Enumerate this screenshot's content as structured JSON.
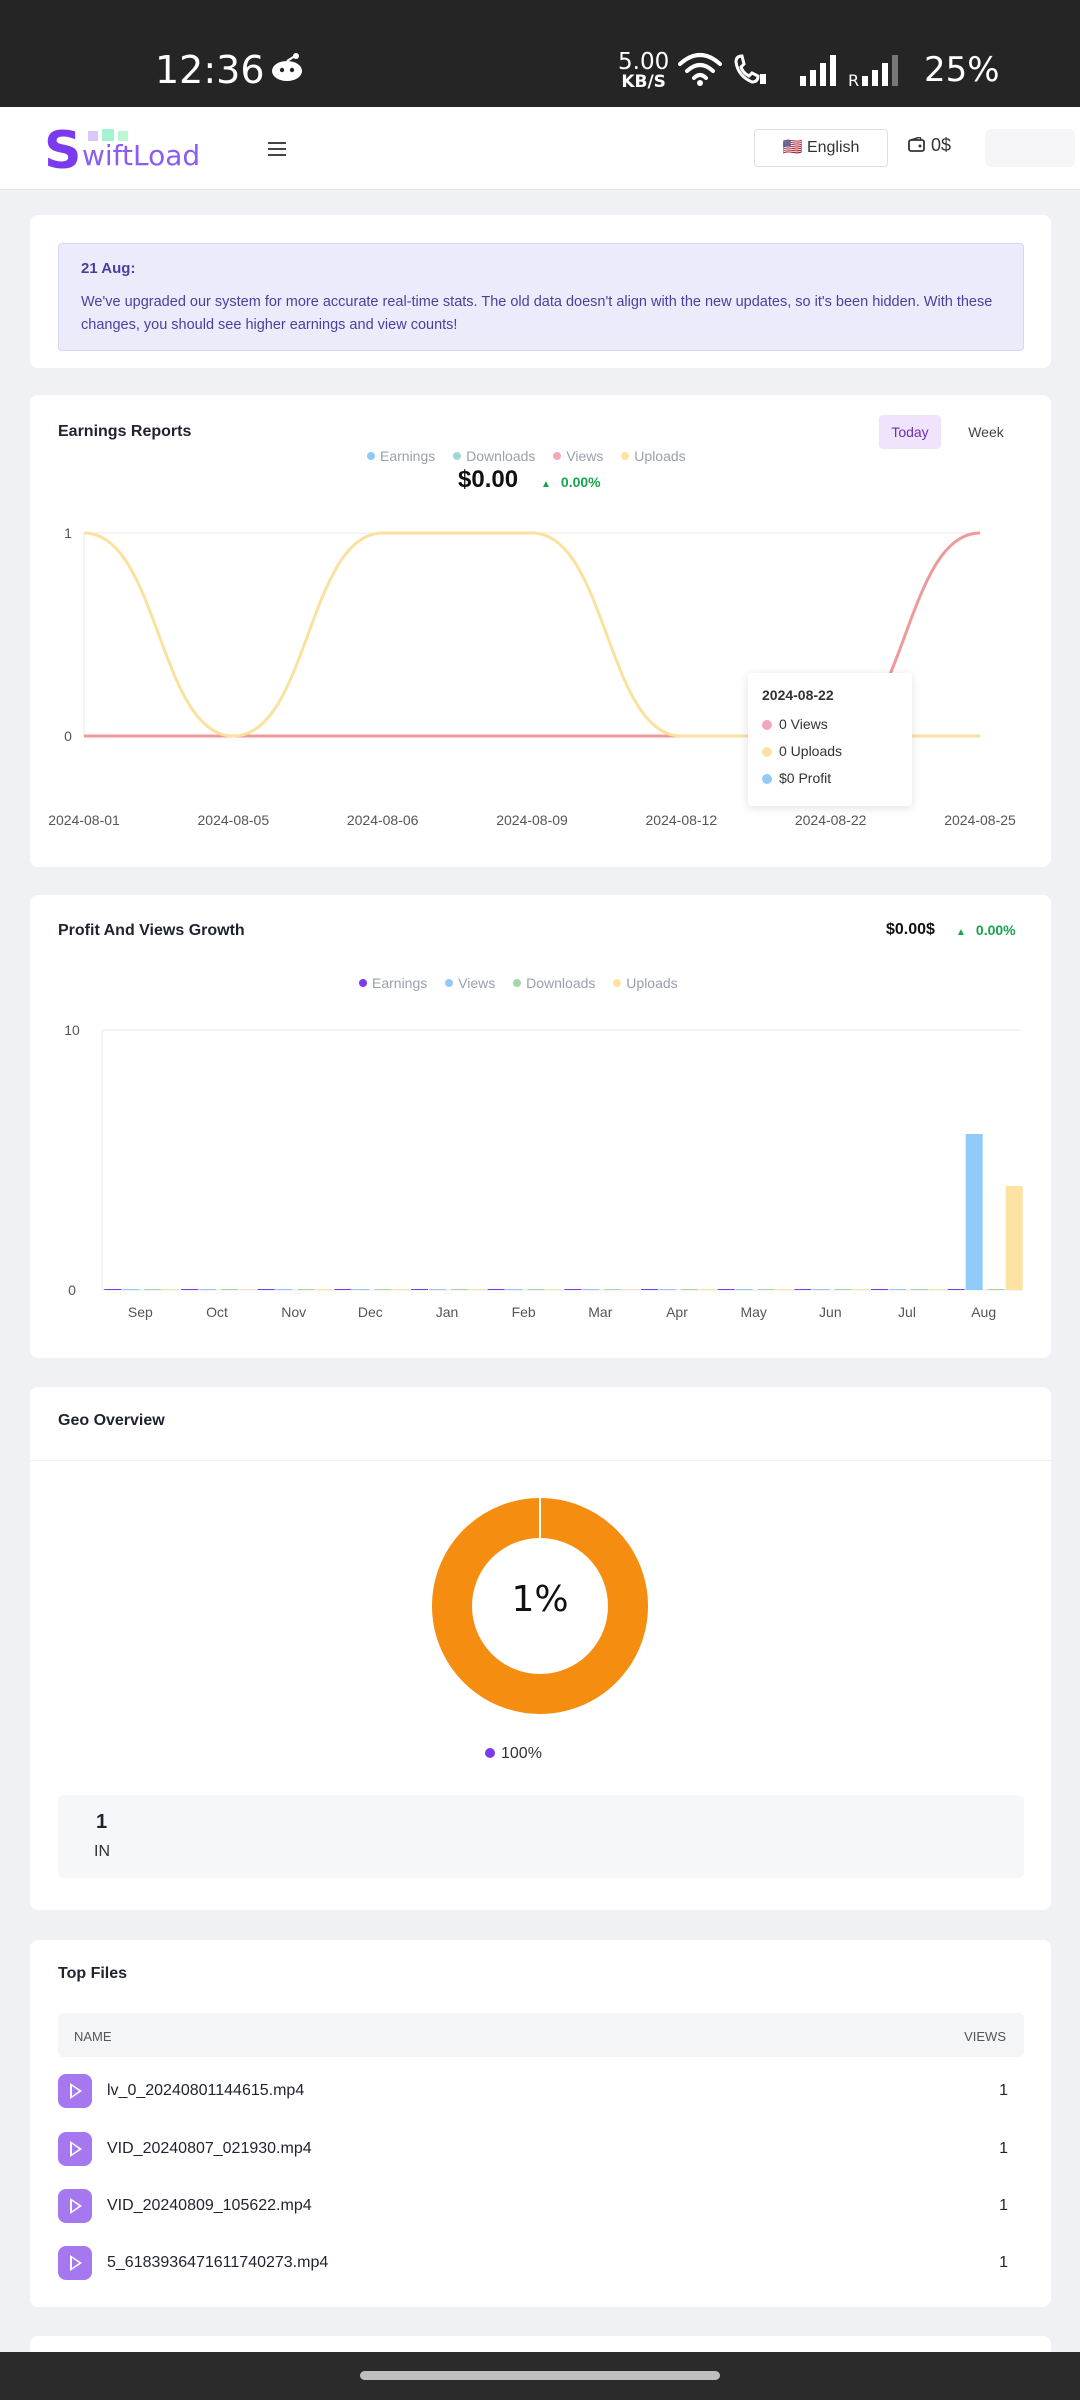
{
  "status_bar": {
    "time": "12:36",
    "speed_value": "5.00",
    "speed_unit": "KB/S",
    "battery": "25%"
  },
  "header": {
    "logo_s": "S",
    "logo_rest": "wiftLoad",
    "language": "🇺🇸 English",
    "wallet": "0$"
  },
  "notice": {
    "date": "21 Aug:",
    "message": "We've upgraded our system for more accurate real-time stats. The old data doesn't align with the new updates, so it's been hidden. With these changes, you should see higher earnings and view counts!"
  },
  "earnings_report": {
    "title": "Earnings Reports",
    "tabs": [
      "Today",
      "Week"
    ],
    "legend": [
      "Earnings",
      "Downloads",
      "Views",
      "Uploads"
    ],
    "total": "$0.00",
    "change": "0.00%",
    "tooltip": {
      "date": "2024-08-22",
      "views": "0 Views",
      "uploads": "0 Uploads",
      "profit": "$0 Profit"
    },
    "colors": {
      "earnings": "#90caf9",
      "downloads": "#9fd8d0",
      "views": "#f4a7b9",
      "uploads": "#fde3a1",
      "views_line": "#ef9a9a",
      "earnings_line": "#90caf9",
      "purple_line": "#b39ddb"
    }
  },
  "profit_growth": {
    "title": "Profit And Views Growth",
    "total": "$0.00$",
    "change": "0.00%",
    "legend": [
      "Earnings",
      "Views",
      "Downloads",
      "Uploads"
    ],
    "legend_colors": [
      "#7c3aed",
      "#90caf9",
      "#a5d6a7",
      "#fde3a1"
    ]
  },
  "geo": {
    "title": "Geo Overview",
    "center_label": "1%",
    "legend": "100%",
    "count": "1",
    "country": "IN",
    "ring_color": "#f58d10"
  },
  "top_files": {
    "title": "Top Files",
    "col_name": "NAME",
    "col_views": "VIEWS",
    "rows": [
      {
        "name": "lv_0_20240801144615.mp4",
        "views": "1"
      },
      {
        "name": "VID_20240807_021930.mp4",
        "views": "1"
      },
      {
        "name": "VID_20240809_105622.mp4",
        "views": "1"
      },
      {
        "name": "5_6183936471611740273.mp4",
        "views": "1"
      }
    ]
  },
  "chart_data": [
    {
      "type": "line",
      "title": "Earnings Reports",
      "categories": [
        "2024-08-01",
        "2024-08-05",
        "2024-08-06",
        "2024-08-09",
        "2024-08-12",
        "2024-08-22",
        "2024-08-25"
      ],
      "ylim": [
        0,
        1
      ],
      "yticks": [
        "0",
        "1"
      ],
      "series": [
        {
          "name": "Earnings",
          "values": [
            0,
            0,
            0,
            0,
            0,
            0,
            0
          ]
        },
        {
          "name": "Views",
          "values": [
            0,
            0,
            0,
            0,
            0,
            0,
            1
          ]
        },
        {
          "name": "Uploads",
          "values": [
            1,
            0,
            1,
            1,
            0,
            0,
            0
          ]
        }
      ]
    },
    {
      "type": "bar",
      "title": "Profit And Views Growth",
      "categories": [
        "Sep",
        "Oct",
        "Nov",
        "Dec",
        "Jan",
        "Feb",
        "Mar",
        "Apr",
        "May",
        "Jun",
        "Jul",
        "Aug"
      ],
      "ylim": [
        0,
        10
      ],
      "yticks": [
        "0",
        "10"
      ],
      "series": [
        {
          "name": "Earnings",
          "values": [
            0,
            0,
            0,
            0,
            0,
            0,
            0,
            0,
            0,
            0,
            0,
            0
          ]
        },
        {
          "name": "Views",
          "values": [
            0,
            0,
            0,
            0,
            0,
            0,
            0,
            0,
            0,
            0,
            0,
            6
          ]
        },
        {
          "name": "Downloads",
          "values": [
            0,
            0,
            0,
            0,
            0,
            0,
            0,
            0,
            0,
            0,
            0,
            0
          ]
        },
        {
          "name": "Uploads",
          "values": [
            0,
            0,
            0,
            0,
            0,
            0,
            0,
            0,
            0,
            0,
            0,
            4
          ]
        }
      ]
    },
    {
      "type": "pie",
      "title": "Geo Overview",
      "categories": [
        "IN"
      ],
      "values": [
        100
      ]
    }
  ]
}
